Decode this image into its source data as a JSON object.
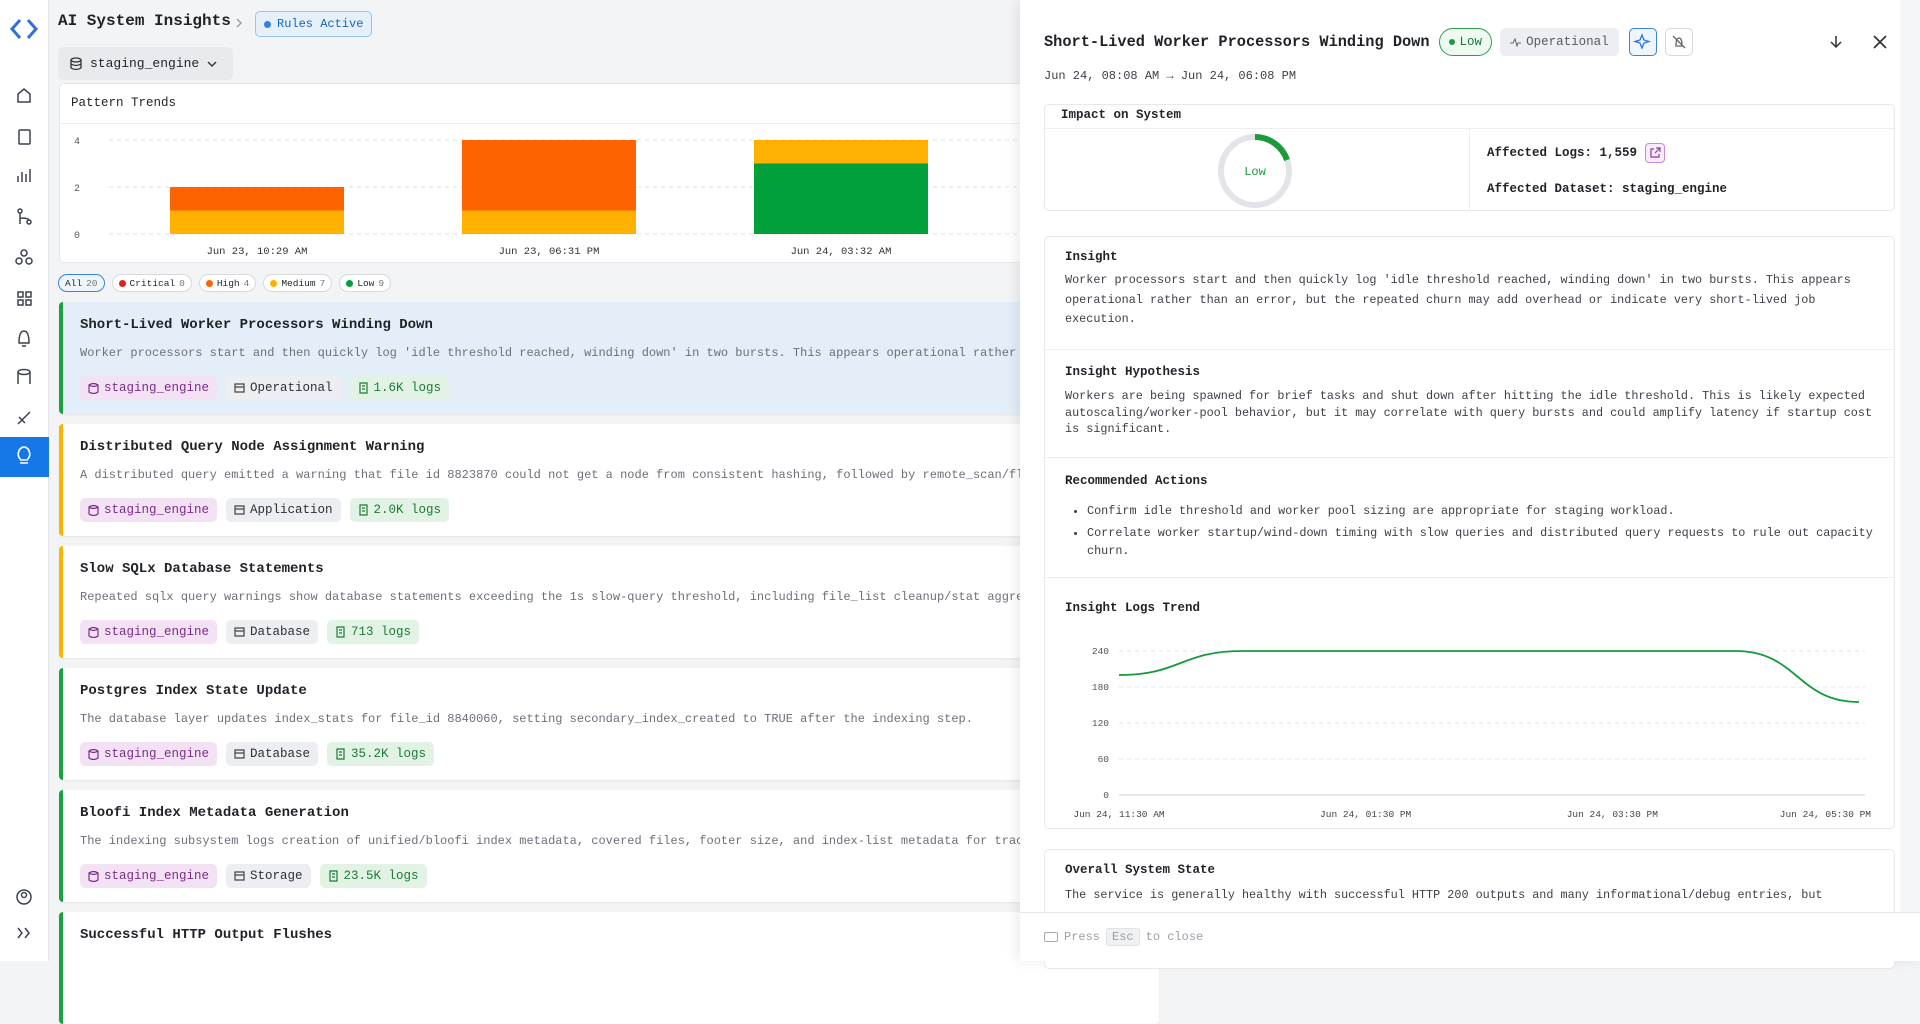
{
  "header": {
    "title": "AI System Insights",
    "status": "Rules Active",
    "dataset": "staging_engine"
  },
  "pattern_trends": {
    "title": "Pattern Trends",
    "type": "bar",
    "stacked": true,
    "categories": [
      "Jun 23, 10:29 AM",
      "Jun 23, 06:31 PM",
      "Jun 24, 03:32 AM"
    ],
    "series": [
      {
        "color": "#02a03a",
        "values": [
          0,
          0,
          3
        ]
      },
      {
        "color": "#ffb000",
        "values": [
          1,
          1,
          1
        ]
      },
      {
        "color": "#ff6200",
        "values": [
          1,
          3,
          0
        ]
      }
    ],
    "ylim": [
      0,
      4
    ],
    "yticks": [
      0,
      2,
      4
    ],
    "grid": true
  },
  "filters": [
    {
      "label": "All",
      "count": 20
    },
    {
      "label": "Critical",
      "count": 0,
      "color": "#e0201c"
    },
    {
      "label": "High",
      "count": 4,
      "color": "#ff6200"
    },
    {
      "label": "Medium",
      "count": 7,
      "color": "#ffb000"
    },
    {
      "label": "Low",
      "count": 9,
      "color": "#02a03a"
    }
  ],
  "insights": [
    {
      "title": "Short-Lived Worker Processors Winding Down",
      "description": "Worker processors start and then quickly log 'idle threshold reached, winding down' in two bursts. This appears operational rather",
      "dataset": "staging_engine",
      "category": "Operational",
      "logs": "1.6K logs",
      "color": "#19a23f"
    },
    {
      "title": "Distributed Query Node Assignment Warning",
      "description": "A distributed query emitted a warning that file id 8823870 could not get a node from consistent hashing, followed by remote_scan/fl",
      "dataset": "staging_engine",
      "category": "Application",
      "logs": "2.0K logs",
      "color": "#ffb300"
    },
    {
      "title": "Slow SQLx Database Statements",
      "description": "Repeated sqlx query warnings show database statements exceeding the 1s slow-query threshold, including file_list cleanup/stat aggre",
      "dataset": "staging_engine",
      "category": "Database",
      "logs": "713 logs",
      "color": "#ffb300"
    },
    {
      "title": "Postgres Index State Update",
      "description": "The database layer updates index_stats for file_id 8840060, setting secondary_index_created to TRUE after the indexing step.",
      "dataset": "staging_engine",
      "category": "Database",
      "logs": "35.2K logs",
      "color": "#19a23f"
    },
    {
      "title": "Bloofi Index Metadata Generation",
      "description": "The indexing subsystem logs creation of unified/bloofi index metadata, covered files, footer size, and index-list metadata for trac",
      "dataset": "staging_engine",
      "category": "Storage",
      "logs": "23.5K logs",
      "color": "#19a23f"
    },
    {
      "title": "Successful HTTP Output Flushes",
      "color": "#19a23f"
    }
  ],
  "detail": {
    "title": "Short-Lived Worker Processors Winding Down",
    "severity": "Low",
    "category": "Operational",
    "time_range": "Jun 24, 08:08 AM → Jun 24, 06:08 PM",
    "impact": {
      "title": "Impact on System",
      "level": "Low",
      "affected_logs": "Affected Logs: 1,559",
      "affected_dataset": "Affected Dataset: staging_engine"
    },
    "insight": {
      "title": "Insight",
      "text": "Worker processors start and then quickly log 'idle threshold reached, winding down' in two bursts. This appears operational rather than an error, but the repeated churn may add overhead or indicate very short-lived job execution."
    },
    "hypothesis": {
      "title": "Insight Hypothesis",
      "text": "Workers are being spawned for brief tasks and shut down after hitting the idle threshold. This is likely expected autoscaling/worker-pool behavior, but it may correlate with query bursts and could amplify latency if startup cost is significant."
    },
    "actions": {
      "title": "Recommended Actions",
      "items": [
        "Confirm idle threshold and worker pool sizing are appropriate for staging workload.",
        "Correlate worker startup/wind-down timing with slow queries and distributed query requests to rule out capacity churn."
      ]
    },
    "logs_trend": {
      "title": "Insight Logs Trend",
      "type": "line",
      "x": [
        "Jun 24, 11:30 AM",
        null,
        "Jun 24, 01:30 PM",
        null,
        "Jun 24, 03:30 PM",
        null,
        "Jun 24, 05:30 PM"
      ],
      "values": [
        200,
        240,
        240,
        240,
        240,
        240,
        155
      ],
      "color": "#149a3c",
      "ylim": [
        0,
        240
      ],
      "yticks": [
        0,
        60,
        120,
        180,
        240
      ],
      "grid": true
    },
    "system_state": {
      "title": "Overall System State",
      "text": "The service is generally healthy with successful HTTP 200 outputs and many informational/debug entries, but"
    }
  },
  "footer": {
    "press": "Press",
    "key": "Esc",
    "action": "to close"
  }
}
